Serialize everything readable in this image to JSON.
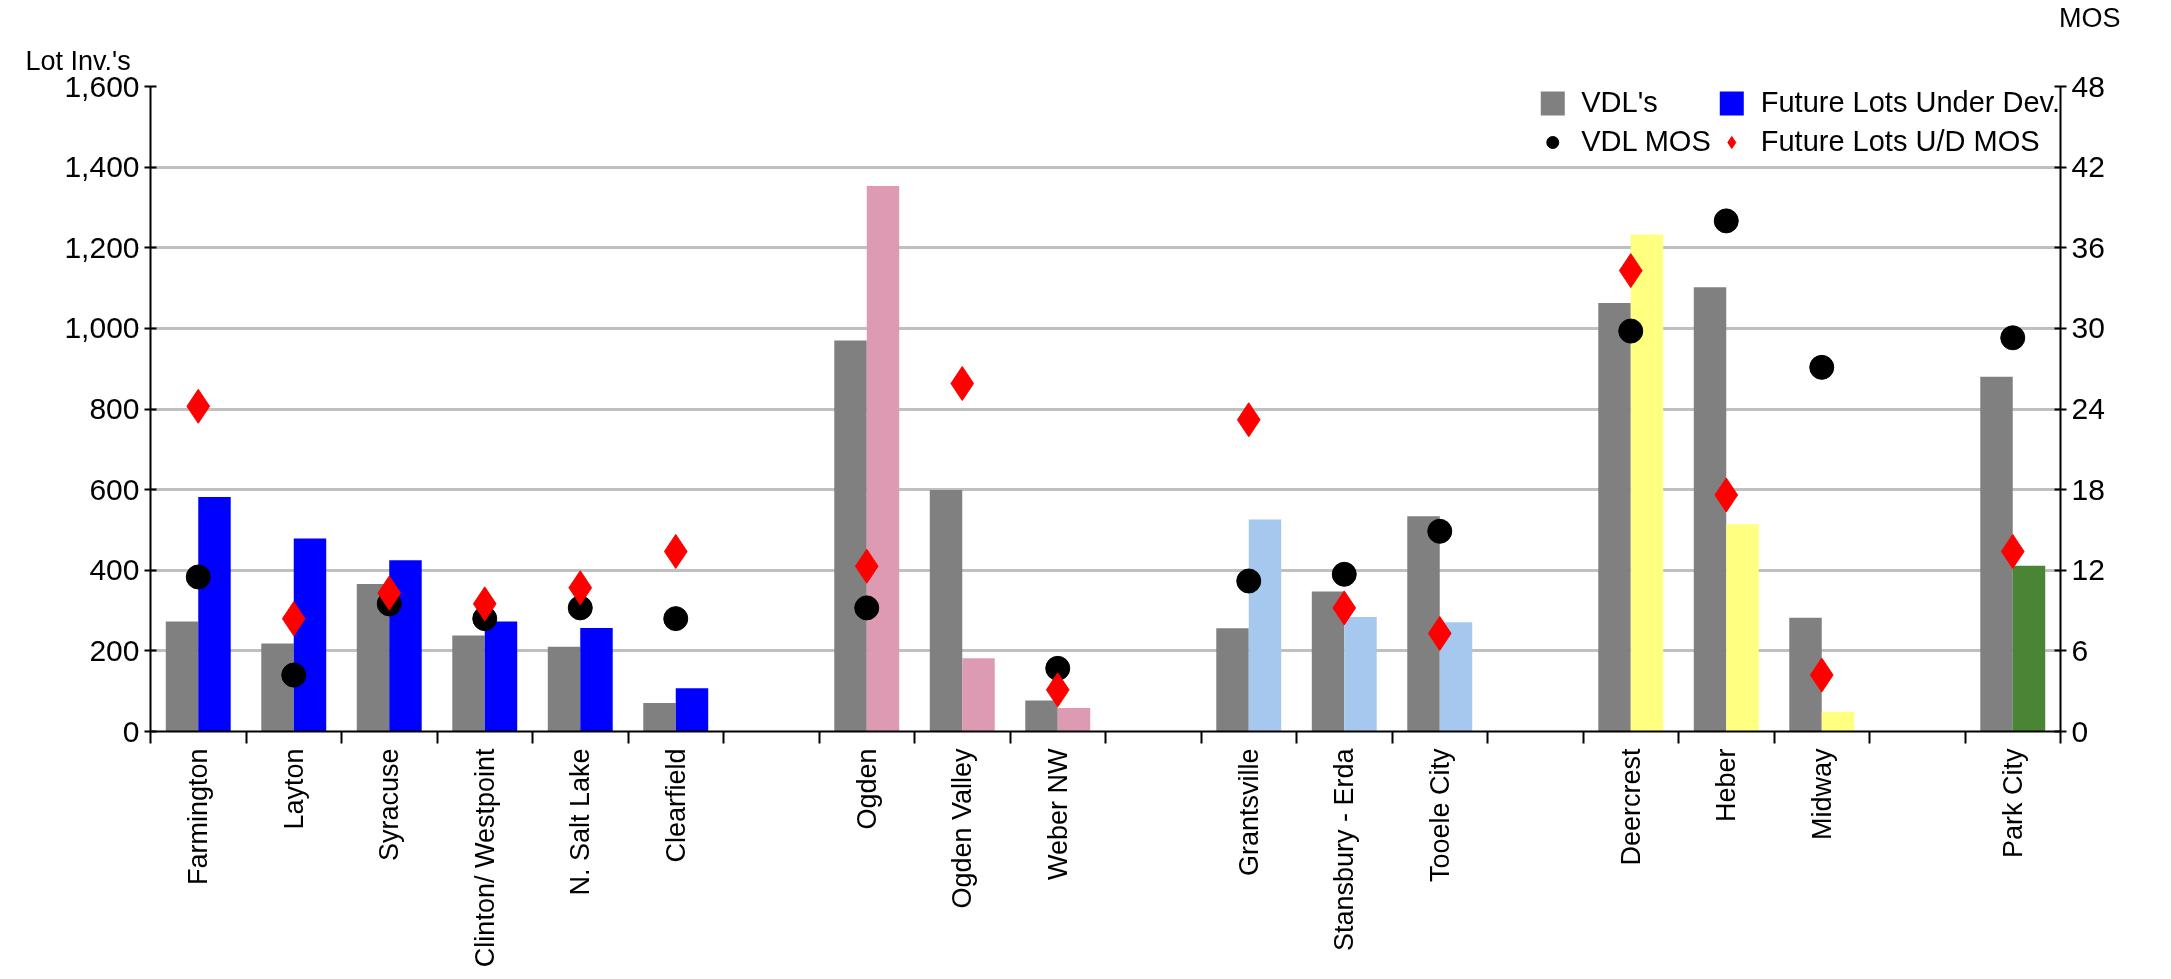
{
  "chart_data": {
    "type": "bar",
    "categories": [
      "Farmington",
      "Layton",
      "Syracuse",
      "Clinton/ Westpoint",
      "N. Salt Lake",
      "Clearfield",
      null,
      "Ogden",
      "Ogden Valley",
      "Weber NW",
      null,
      "Grantsville",
      "Stansbury - Erda",
      "Tooele City",
      null,
      "Deercrest",
      "Heber",
      "Midway",
      null,
      "Park City"
    ],
    "ylabel": "Lot Inv.'s",
    "y2label": "MOS",
    "series": [
      {
        "name": "VDL's",
        "color": "#808080",
        "values": [
          273,
          218,
          366,
          238,
          210,
          71,
          null,
          970,
          599,
          77,
          null,
          256,
          347,
          534,
          null,
          1063,
          1102,
          282,
          null,
          880
        ]
      },
      {
        "name": "Future Lots Under Dev.",
        "color": "#0000ff",
        "colors": [
          "#0000ff",
          "#0000ff",
          "#0000ff",
          "#0000ff",
          "#0000ff",
          "#0000ff",
          null,
          "#dd9ab3",
          "#dd9ab3",
          "#dd9ab3",
          null,
          "#a6c8ee",
          "#a6c8ee",
          "#a6c8ee",
          null,
          "#ffff80",
          "#ffff80",
          "#ffff80",
          null,
          "#4a8535"
        ],
        "values": [
          582,
          479,
          425,
          273,
          257,
          107,
          null,
          1353,
          182,
          58,
          null,
          526,
          284,
          271,
          null,
          1233,
          514,
          49,
          null,
          411
        ]
      },
      {
        "name": "VDL MOS",
        "type": "scatter",
        "axis": "y2",
        "marker": "circle",
        "color": "#000000",
        "values": [
          11.5,
          4.2,
          9.5,
          8.4,
          9.2,
          8.4,
          null,
          9.2,
          null,
          4.7,
          null,
          11.2,
          11.7,
          14.9,
          null,
          29.8,
          38.0,
          27.1,
          null,
          29.3
        ]
      },
      {
        "name": "Future Lots U/D MOS",
        "type": "scatter",
        "axis": "y2",
        "marker": "diamond",
        "color": "#ff0000",
        "values": [
          24.2,
          8.4,
          10.3,
          9.5,
          10.7,
          13.4,
          null,
          12.3,
          25.9,
          3.1,
          null,
          23.2,
          9.2,
          7.3,
          null,
          34.3,
          17.6,
          4.2,
          null,
          13.4
        ]
      }
    ],
    "ylim": [
      0,
      1600
    ],
    "yticks": [
      0,
      {
        "value": 200,
        "label": "200"
      },
      {
        "value": 400,
        "label": "400"
      },
      {
        "value": 600,
        "label": "600"
      },
      {
        "value": 800,
        "label": "800"
      },
      {
        "value": 1000,
        "label": "1,000"
      },
      {
        "value": 1200,
        "label": "1,200"
      },
      {
        "value": 1400,
        "label": "1,400"
      },
      {
        "value": 1600,
        "label": "1,600"
      }
    ],
    "y2lim": [
      0,
      48
    ],
    "y2ticks": [
      0,
      6,
      12,
      18,
      24,
      30,
      36,
      42,
      48
    ],
    "grid": "y",
    "legend": "top right"
  }
}
